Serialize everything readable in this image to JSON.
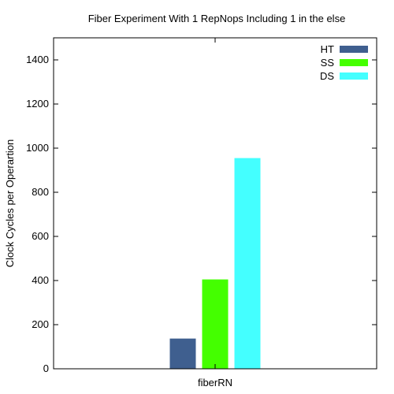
{
  "chart_data": {
    "type": "bar",
    "title": "Fiber Experiment With 1 RepNops Including 1 in the else",
    "xlabel": "",
    "ylabel": "Clock Cycles per Operartion",
    "ylim": [
      0,
      1500
    ],
    "yticks": [
      0,
      200,
      400,
      600,
      800,
      1000,
      1200,
      1400
    ],
    "categories": [
      "fiberRN"
    ],
    "legend_position": "top-right",
    "grid": false,
    "series": [
      {
        "name": "HT",
        "color": "#3f5f8f",
        "values": [
          137
        ]
      },
      {
        "name": "SS",
        "color": "#44ff00",
        "values": [
          405
        ]
      },
      {
        "name": "DS",
        "color": "#44ffff",
        "values": [
          955
        ]
      }
    ]
  }
}
